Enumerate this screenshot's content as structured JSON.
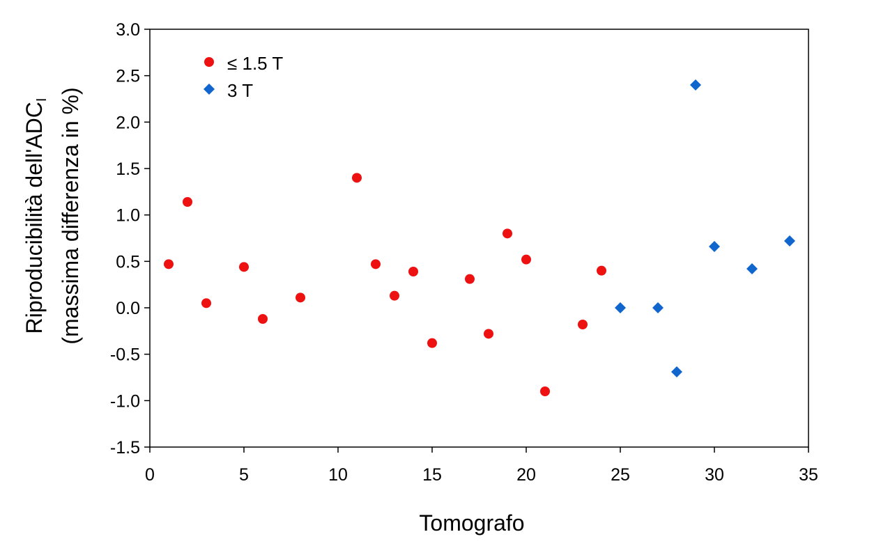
{
  "chart_data": {
    "type": "scatter",
    "title": "",
    "xlabel": "Tomografo",
    "ylabel_line1": "Riproducibilità dell'ADC",
    "ylabel_subscript": "I",
    "ylabel_line2": "(massima differenza in %)",
    "xlim": [
      0,
      35
    ],
    "ylim": [
      -1.5,
      3.0
    ],
    "xticks": [
      0,
      5,
      10,
      15,
      20,
      25,
      30,
      35
    ],
    "xtick_labels": [
      "0",
      "5",
      "10",
      "15",
      "20",
      "25",
      "30",
      "35"
    ],
    "yticks": [
      -1.5,
      -1.0,
      -0.5,
      0.0,
      0.5,
      1.0,
      1.5,
      2.0,
      2.5,
      3.0
    ],
    "ytick_labels": [
      "-1.5",
      "-1.0",
      "-0.5",
      "0.0",
      "0.5",
      "1.0",
      "1.5",
      "2.0",
      "2.5",
      "3.0"
    ],
    "grid": false,
    "legend_position": "top-left",
    "series": [
      {
        "name": "≤ 1.5 T",
        "marker": "circle",
        "color": "#ee1111",
        "points": [
          [
            1,
            0.47
          ],
          [
            2,
            1.14
          ],
          [
            3,
            0.05
          ],
          [
            5,
            0.44
          ],
          [
            6,
            -0.12
          ],
          [
            8,
            0.11
          ],
          [
            11,
            1.4
          ],
          [
            12,
            0.47
          ],
          [
            13,
            0.13
          ],
          [
            14,
            0.39
          ],
          [
            15,
            -0.38
          ],
          [
            17,
            0.31
          ],
          [
            18,
            -0.28
          ],
          [
            19,
            0.8
          ],
          [
            20,
            0.52
          ],
          [
            21,
            -0.9
          ],
          [
            23,
            -0.18
          ],
          [
            24,
            0.4
          ]
        ]
      },
      {
        "name": "3 T",
        "marker": "diamond",
        "color": "#1066cc",
        "points": [
          [
            25,
            0.0
          ],
          [
            27,
            0.0
          ],
          [
            28,
            -0.69
          ],
          [
            29,
            2.4
          ],
          [
            30,
            0.66
          ],
          [
            32,
            0.42
          ],
          [
            34,
            0.72
          ]
        ]
      }
    ]
  }
}
